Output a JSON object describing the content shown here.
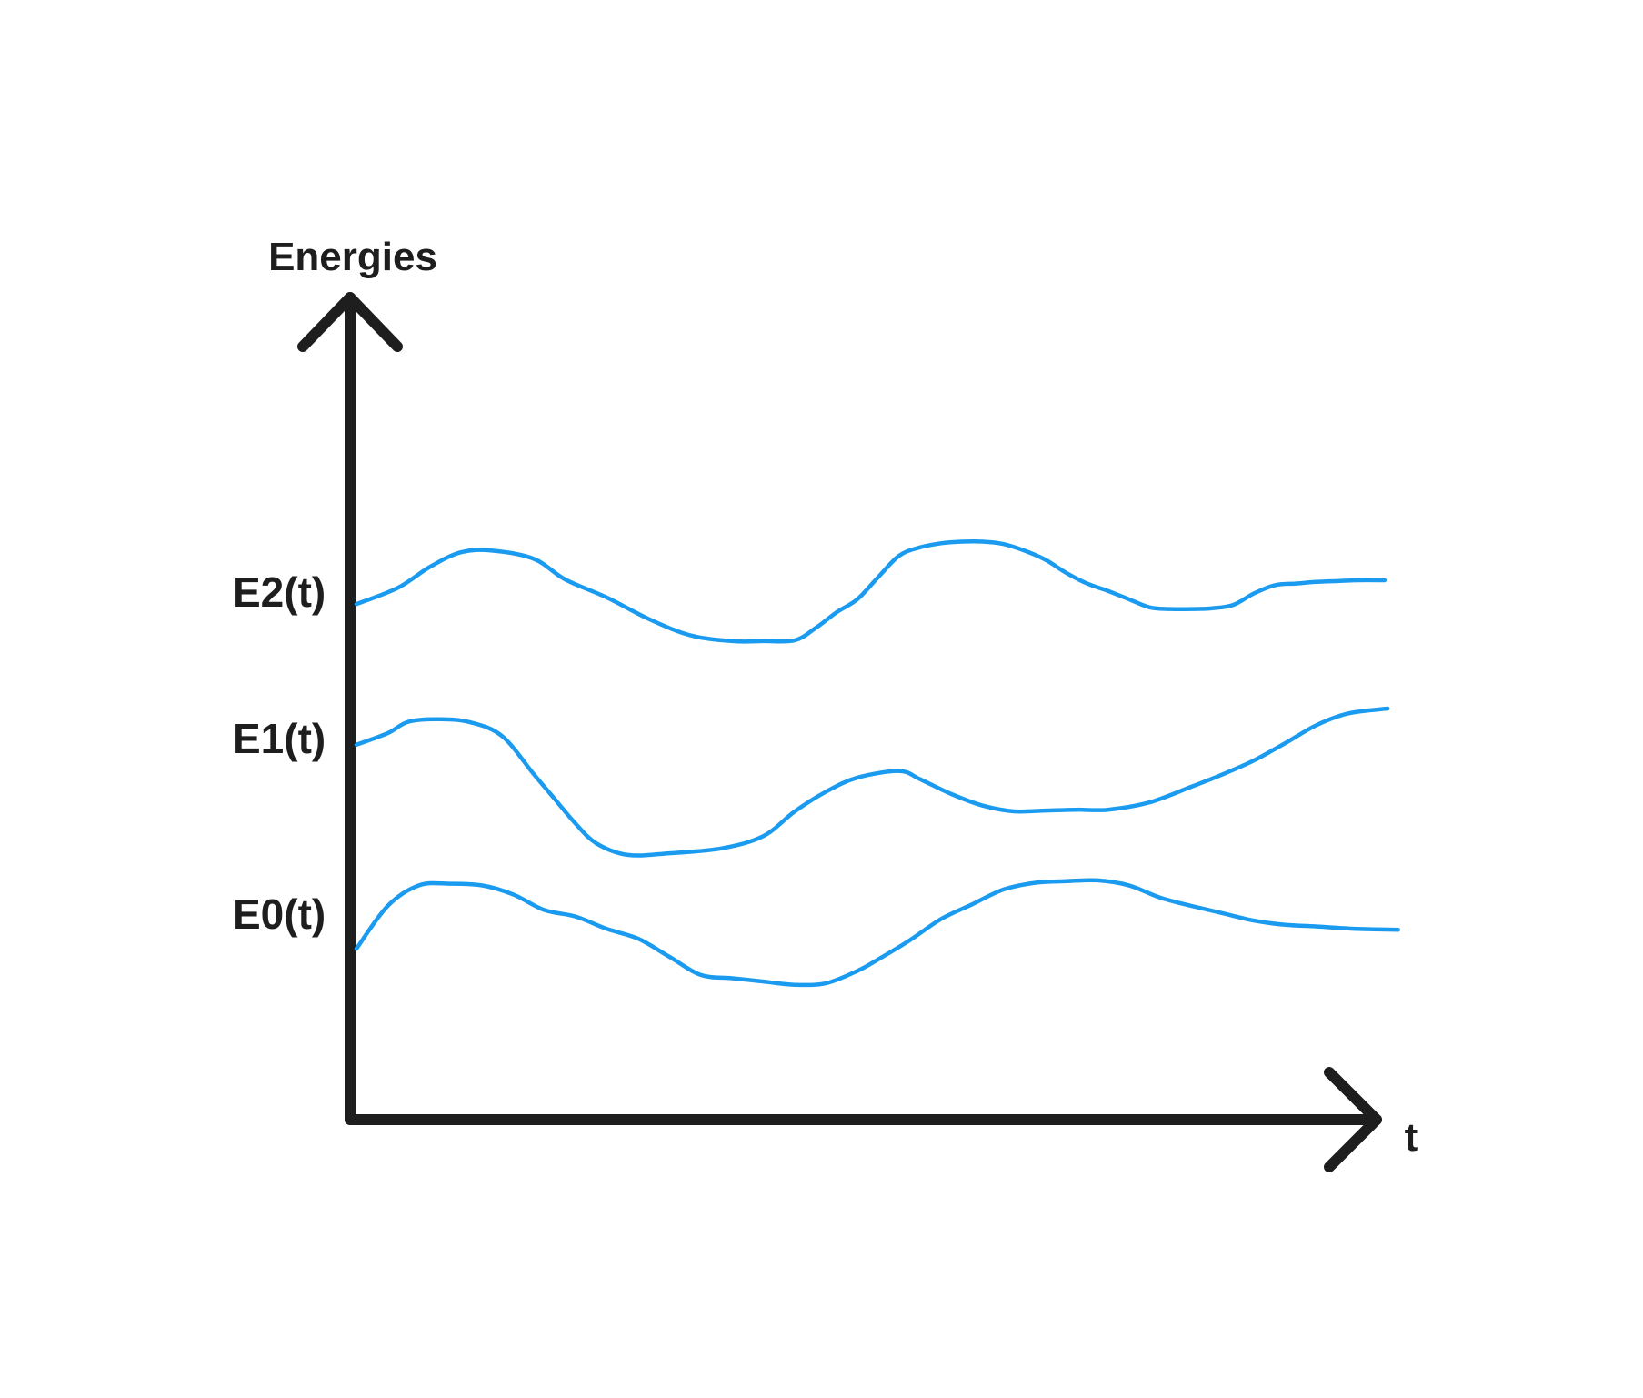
{
  "chart_data": {
    "type": "line",
    "title": "",
    "ylabel": "Energies",
    "xlabel": "t",
    "xlim": [
      0,
      1
    ],
    "ylim": [
      0,
      1
    ],
    "grid": false,
    "legend": "none",
    "axis_color": "#1e1e1e",
    "series": [
      {
        "name": "E2(t)",
        "color": "#1a9bf0",
        "x": [
          0,
          0.04,
          0.07,
          0.1,
          0.13,
          0.17,
          0.2,
          0.24,
          0.28,
          0.32,
          0.36,
          0.39,
          0.42,
          0.44,
          0.46,
          0.48,
          0.5,
          0.52,
          0.54,
          0.56,
          0.58,
          0.6,
          0.62,
          0.64,
          0.66,
          0.68,
          0.7,
          0.72,
          0.74,
          0.76,
          0.78,
          0.8,
          0.82,
          0.84,
          0.86,
          0.88,
          0.9,
          0.92,
          0.94,
          0.96,
          0.985
        ],
        "y": [
          0.627,
          0.647,
          0.672,
          0.69,
          0.692,
          0.682,
          0.657,
          0.635,
          0.609,
          0.589,
          0.582,
          0.582,
          0.583,
          0.598,
          0.617,
          0.633,
          0.66,
          0.686,
          0.696,
          0.701,
          0.703,
          0.703,
          0.7,
          0.692,
          0.681,
          0.665,
          0.652,
          0.643,
          0.633,
          0.623,
          0.621,
          0.621,
          0.622,
          0.626,
          0.64,
          0.65,
          0.652,
          0.654,
          0.655,
          0.656,
          0.656
        ]
      },
      {
        "name": "E1(t)",
        "color": "#1a9bf0",
        "x": [
          0,
          0.03,
          0.05,
          0.08,
          0.11,
          0.14,
          0.17,
          0.19,
          0.21,
          0.23,
          0.26,
          0.3,
          0.35,
          0.39,
          0.42,
          0.45,
          0.48,
          0.52,
          0.54,
          0.57,
          0.6,
          0.63,
          0.66,
          0.69,
          0.72,
          0.76,
          0.8,
          0.83,
          0.86,
          0.89,
          0.92,
          0.95,
          0.988
        ],
        "y": [
          0.456,
          0.47,
          0.484,
          0.487,
          0.483,
          0.466,
          0.42,
          0.39,
          0.36,
          0.336,
          0.322,
          0.324,
          0.33,
          0.345,
          0.375,
          0.399,
          0.416,
          0.424,
          0.414,
          0.396,
          0.382,
          0.375,
          0.376,
          0.377,
          0.377,
          0.386,
          0.405,
          0.42,
          0.437,
          0.458,
          0.48,
          0.494,
          0.5
        ]
      },
      {
        "name": "E0(t)",
        "color": "#1a9bf0",
        "x": [
          0,
          0.03,
          0.06,
          0.09,
          0.12,
          0.15,
          0.18,
          0.21,
          0.24,
          0.27,
          0.3,
          0.33,
          0.36,
          0.39,
          0.42,
          0.45,
          0.48,
          0.5,
          0.53,
          0.56,
          0.59,
          0.62,
          0.65,
          0.68,
          0.71,
          0.74,
          0.77,
          0.8,
          0.83,
          0.86,
          0.89,
          0.92,
          0.96,
          0.998
        ],
        "y": [
          0.208,
          0.26,
          0.285,
          0.287,
          0.285,
          0.274,
          0.255,
          0.247,
          0.232,
          0.22,
          0.198,
          0.176,
          0.172,
          0.168,
          0.164,
          0.166,
          0.181,
          0.195,
          0.218,
          0.244,
          0.262,
          0.28,
          0.288,
          0.29,
          0.291,
          0.285,
          0.27,
          0.26,
          0.251,
          0.242,
          0.237,
          0.235,
          0.232,
          0.231
        ]
      }
    ]
  }
}
